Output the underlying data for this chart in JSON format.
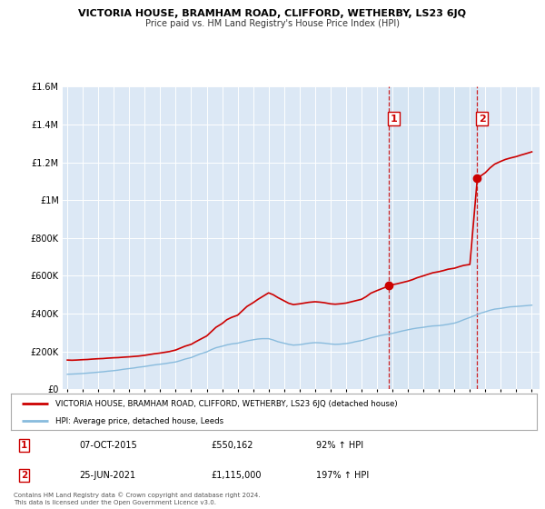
{
  "title": "VICTORIA HOUSE, BRAMHAM ROAD, CLIFFORD, WETHERBY, LS23 6JQ",
  "subtitle": "Price paid vs. HM Land Registry's House Price Index (HPI)",
  "ylim": [
    0,
    1600000
  ],
  "xlim_start": 1994.7,
  "xlim_end": 2025.5,
  "bg_color": "#dce8f5",
  "fig_bg": "#ffffff",
  "red_line_color": "#cc0000",
  "blue_line_color": "#88bbdd",
  "marker1_year": 2015.77,
  "marker1_value": 550162,
  "marker2_year": 2021.48,
  "marker2_value": 1115000,
  "dashed_line1_x": 2015.77,
  "dashed_line2_x": 2021.48,
  "legend_red": "VICTORIA HOUSE, BRAMHAM ROAD, CLIFFORD, WETHERBY, LS23 6JQ (detached house)",
  "legend_blue": "HPI: Average price, detached house, Leeds",
  "annotation1_label": "1",
  "annotation1_date": "07-OCT-2015",
  "annotation1_price": "£550,162",
  "annotation1_hpi": "92% ↑ HPI",
  "annotation2_label": "2",
  "annotation2_date": "25-JUN-2021",
  "annotation2_price": "£1,115,000",
  "annotation2_hpi": "197% ↑ HPI",
  "footer1": "Contains HM Land Registry data © Crown copyright and database right 2024.",
  "footer2": "This data is licensed under the Open Government Licence v3.0.",
  "red_x": [
    1995.0,
    1995.3,
    1995.6,
    1996.0,
    1996.3,
    1996.6,
    1997.0,
    1997.3,
    1997.6,
    1998.0,
    1998.3,
    1998.6,
    1999.0,
    1999.3,
    1999.6,
    2000.0,
    2000.3,
    2000.6,
    2001.0,
    2001.3,
    2001.6,
    2002.0,
    2002.3,
    2002.6,
    2003.0,
    2003.3,
    2003.6,
    2004.0,
    2004.3,
    2004.6,
    2005.0,
    2005.3,
    2005.6,
    2006.0,
    2006.3,
    2006.6,
    2007.0,
    2007.3,
    2007.6,
    2008.0,
    2008.3,
    2008.6,
    2009.0,
    2009.3,
    2009.6,
    2010.0,
    2010.3,
    2010.6,
    2011.0,
    2011.3,
    2011.6,
    2012.0,
    2012.3,
    2012.6,
    2013.0,
    2013.3,
    2013.6,
    2014.0,
    2014.3,
    2014.6,
    2015.0,
    2015.5,
    2015.77,
    2016.0,
    2016.3,
    2016.6,
    2017.0,
    2017.3,
    2017.6,
    2018.0,
    2018.3,
    2018.6,
    2019.0,
    2019.3,
    2019.6,
    2020.0,
    2020.3,
    2020.6,
    2021.0,
    2021.48,
    2022.0,
    2022.3,
    2022.6,
    2023.0,
    2023.3,
    2023.6,
    2024.0,
    2024.3,
    2024.6,
    2025.0
  ],
  "red_y": [
    155000,
    154000,
    155000,
    157000,
    158000,
    160000,
    162000,
    163000,
    165000,
    167000,
    168000,
    170000,
    172000,
    174000,
    176000,
    180000,
    184000,
    188000,
    192000,
    196000,
    200000,
    208000,
    218000,
    228000,
    238000,
    252000,
    265000,
    282000,
    305000,
    328000,
    348000,
    368000,
    380000,
    392000,
    415000,
    438000,
    458000,
    475000,
    490000,
    510000,
    500000,
    485000,
    468000,
    455000,
    448000,
    452000,
    456000,
    460000,
    463000,
    461000,
    458000,
    452000,
    450000,
    452000,
    456000,
    462000,
    468000,
    476000,
    490000,
    508000,
    522000,
    538000,
    550162,
    553000,
    558000,
    564000,
    572000,
    580000,
    590000,
    600000,
    608000,
    616000,
    622000,
    628000,
    635000,
    640000,
    648000,
    655000,
    660000,
    1115000,
    1145000,
    1170000,
    1190000,
    1205000,
    1215000,
    1222000,
    1230000,
    1238000,
    1245000,
    1255000
  ],
  "blue_x": [
    1995.0,
    1995.3,
    1995.6,
    1996.0,
    1996.3,
    1996.6,
    1997.0,
    1997.3,
    1997.6,
    1998.0,
    1998.3,
    1998.6,
    1999.0,
    1999.3,
    1999.6,
    2000.0,
    2000.3,
    2000.6,
    2001.0,
    2001.3,
    2001.6,
    2002.0,
    2002.3,
    2002.6,
    2003.0,
    2003.3,
    2003.6,
    2004.0,
    2004.3,
    2004.6,
    2005.0,
    2005.3,
    2005.6,
    2006.0,
    2006.3,
    2006.6,
    2007.0,
    2007.3,
    2007.6,
    2008.0,
    2008.3,
    2008.6,
    2009.0,
    2009.3,
    2009.6,
    2010.0,
    2010.3,
    2010.6,
    2011.0,
    2011.3,
    2011.6,
    2012.0,
    2012.3,
    2012.6,
    2013.0,
    2013.3,
    2013.6,
    2014.0,
    2014.3,
    2014.6,
    2015.0,
    2015.3,
    2015.6,
    2016.0,
    2016.3,
    2016.6,
    2017.0,
    2017.3,
    2017.6,
    2018.0,
    2018.3,
    2018.6,
    2019.0,
    2019.3,
    2019.6,
    2020.0,
    2020.3,
    2020.6,
    2021.0,
    2021.3,
    2021.6,
    2022.0,
    2022.3,
    2022.6,
    2023.0,
    2023.3,
    2023.6,
    2024.0,
    2024.3,
    2024.6,
    2025.0
  ],
  "blue_y": [
    80000,
    81000,
    82000,
    84000,
    86000,
    88000,
    91000,
    93000,
    96000,
    99000,
    102000,
    106000,
    110000,
    113000,
    117000,
    121000,
    125000,
    129000,
    133000,
    136000,
    140000,
    145000,
    152000,
    160000,
    168000,
    178000,
    188000,
    198000,
    210000,
    220000,
    228000,
    235000,
    240000,
    244000,
    250000,
    256000,
    262000,
    266000,
    268000,
    268000,
    261000,
    252000,
    244000,
    238000,
    234000,
    236000,
    240000,
    244000,
    247000,
    246000,
    244000,
    240000,
    238000,
    239000,
    242000,
    246000,
    252000,
    258000,
    265000,
    272000,
    280000,
    286000,
    290000,
    296000,
    302000,
    308000,
    315000,
    320000,
    324000,
    328000,
    332000,
    335000,
    337000,
    340000,
    344000,
    350000,
    358000,
    368000,
    380000,
    390000,
    400000,
    410000,
    418000,
    424000,
    428000,
    432000,
    436000,
    438000,
    440000,
    442000,
    445000
  ]
}
